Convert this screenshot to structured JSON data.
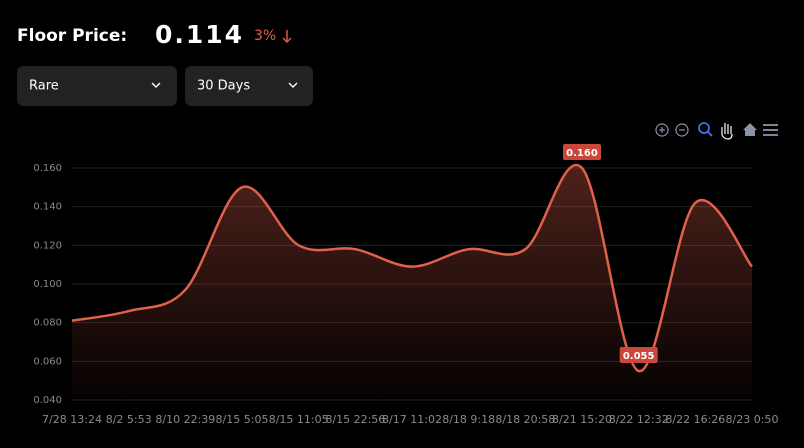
{
  "header": {
    "label": "Floor Price:",
    "value": "0.114",
    "change": "3%"
  },
  "filters": [
    "Rare",
    "30 Days"
  ],
  "chart_data": {
    "type": "line",
    "categories": [
      "7/28 13:24",
      "8/2 5:53",
      "8/10 22:39",
      "8/15 5:05",
      "8/15 11:05",
      "8/15 22:56",
      "8/17 11:02",
      "8/18 9:18",
      "8/18 20:58",
      "8/21 15:20",
      "8/22 12:32",
      "8/22 16:26",
      "8/23 0:50"
    ],
    "values": [
      0.081,
      0.086,
      0.097,
      0.15,
      0.12,
      0.118,
      0.109,
      0.118,
      0.118,
      0.16,
      0.055,
      0.142,
      0.109
    ],
    "value_labels": [
      null,
      null,
      null,
      null,
      null,
      null,
      null,
      null,
      null,
      "0.160",
      "0.055",
      null,
      null
    ],
    "color": "#e0604c",
    "ylim": [
      0.04,
      0.16
    ],
    "yticks": [
      {
        "value": 0.04,
        "label": "0.040"
      },
      {
        "value": 0.06,
        "label": "0.060"
      },
      {
        "value": 0.08,
        "label": "0.080"
      },
      {
        "value": 0.1,
        "label": "0.100"
      },
      {
        "value": 0.12,
        "label": "0.120"
      },
      {
        "value": 0.14,
        "label": "0.140"
      },
      {
        "value": 0.16,
        "label": "0.160"
      }
    ],
    "grid": true
  }
}
